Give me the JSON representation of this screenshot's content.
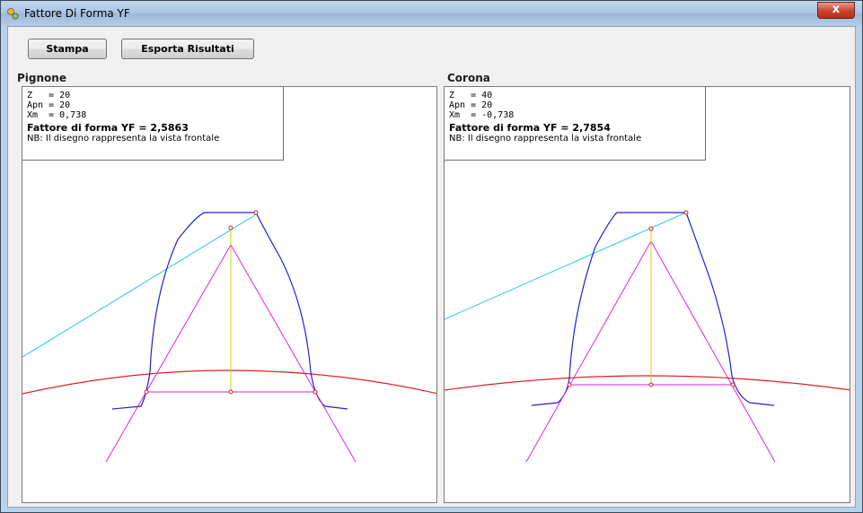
{
  "window": {
    "title": "Fattore Di Forma YF",
    "close_label": "x"
  },
  "toolbar": {
    "print_label": "Stampa",
    "export_label": "Esporta Risultati"
  },
  "panels": [
    {
      "label": "Pignone",
      "z_label": "Z",
      "z_value": "20",
      "apn_label": "Apn",
      "apn_value": "20",
      "xm_label": "Xm",
      "xm_value": "0,738",
      "yf_label": "Fattore di forma YF",
      "yf_value": "2,5863",
      "note": "NB: Il disegno rappresenta la vista frontale"
    },
    {
      "label": "Corona",
      "z_label": "Z",
      "z_value": "40",
      "apn_label": "Apn",
      "apn_value": "20",
      "xm_label": "Xm",
      "xm_value": "-0,738",
      "yf_label": "Fattore di forma YF",
      "yf_value": "2,7854",
      "note": "NB: Il disegno rappresenta la vista frontale"
    }
  ],
  "colors": {
    "tooth_profile": "#2222cc",
    "pitch_circle": "#e02020",
    "parabola": "#e020e0",
    "force_line": "#20c8e0",
    "height_line": "#d8c800",
    "marker": "#d82020"
  }
}
